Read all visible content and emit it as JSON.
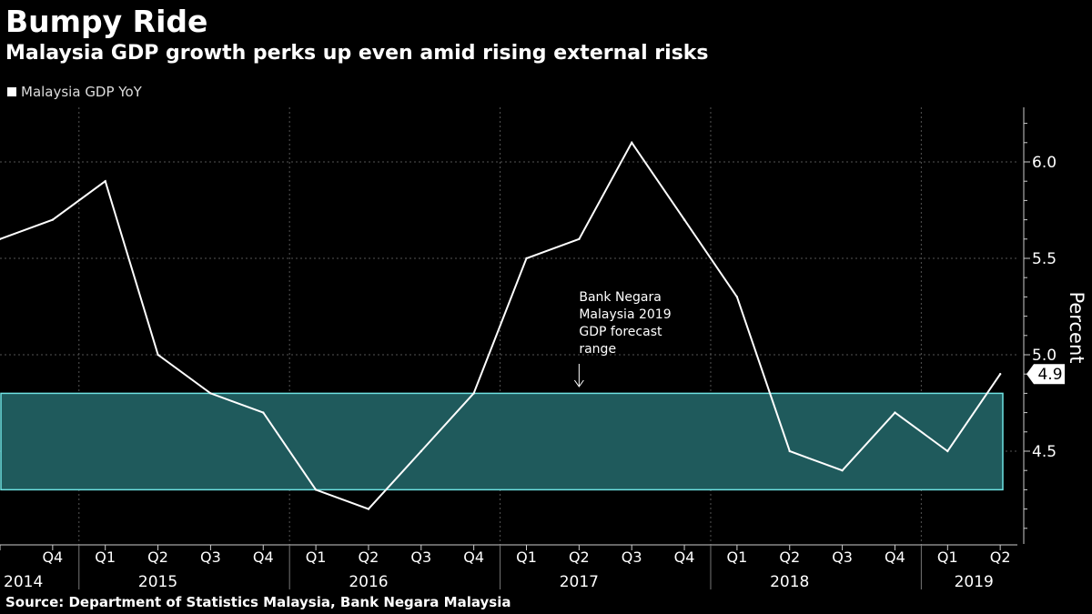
{
  "title": "Bumpy Ride",
  "subtitle": "Malaysia GDP growth perks up even amid rising external risks",
  "source": "Source: Department of Statistics Malaysia, Bank Negara Malaysia",
  "colors": {
    "background": "#000000",
    "line": "#ffffff",
    "band_fill": "#1f5a5c",
    "band_stroke": "#6fe3e3",
    "grid": "#555555"
  },
  "chart_data": {
    "type": "line",
    "title": "Bumpy Ride",
    "subtitle": "Malaysia GDP growth perks up even amid rising external risks",
    "ylabel": "Percent",
    "xlabel": "",
    "ylim": [
      4.1,
      6.3
    ],
    "yticks": [
      4.5,
      5.0,
      5.5,
      6.0
    ],
    "ytick_labels": [
      "4.5",
      "5.0",
      "5.5",
      "6.0"
    ],
    "grid": true,
    "legend_position": "top-left",
    "x": [
      "2014 Q3",
      "2014 Q4",
      "2015 Q1",
      "2015 Q2",
      "2015 Q3",
      "2015 Q4",
      "2016 Q1",
      "2016 Q2",
      "2016 Q3",
      "2016 Q4",
      "2017 Q1",
      "2017 Q2",
      "2017 Q3",
      "2017 Q4",
      "2018 Q1",
      "2018 Q2",
      "2018 Q3",
      "2018 Q4",
      "2019 Q1",
      "2019 Q2"
    ],
    "quarter_labels": [
      "",
      "Q4",
      "Q1",
      "Q2",
      "Q3",
      "Q4",
      "Q1",
      "Q2",
      "Q3",
      "Q4",
      "Q1",
      "Q2",
      "Q3",
      "Q4",
      "Q1",
      "Q2",
      "Q3",
      "Q4",
      "Q1",
      "Q2"
    ],
    "years": [
      {
        "label": "2014",
        "q": 0
      },
      {
        "label": "2015",
        "q": 3
      },
      {
        "label": "2016",
        "q": 7
      },
      {
        "label": "2017",
        "q": 11
      },
      {
        "label": "2018",
        "q": 15
      },
      {
        "label": "2019",
        "q": 18.5
      }
    ],
    "year_separators": [
      1.5,
      5.5,
      9.5,
      13.5,
      17.5
    ],
    "series": [
      {
        "name": "Malaysia GDP YoY",
        "values": [
          5.6,
          5.7,
          5.9,
          5.0,
          4.8,
          4.7,
          4.3,
          4.2,
          4.5,
          4.8,
          5.5,
          5.6,
          6.1,
          5.7,
          5.3,
          4.5,
          4.4,
          4.7,
          4.5,
          4.9
        ]
      }
    ],
    "band": {
      "low": 4.3,
      "high": 4.8,
      "label": [
        "Bank Negara",
        "Malaysia 2019",
        "GDP forecast",
        "range"
      ],
      "arrow_q": 11
    },
    "last_value_label": "4.9"
  }
}
